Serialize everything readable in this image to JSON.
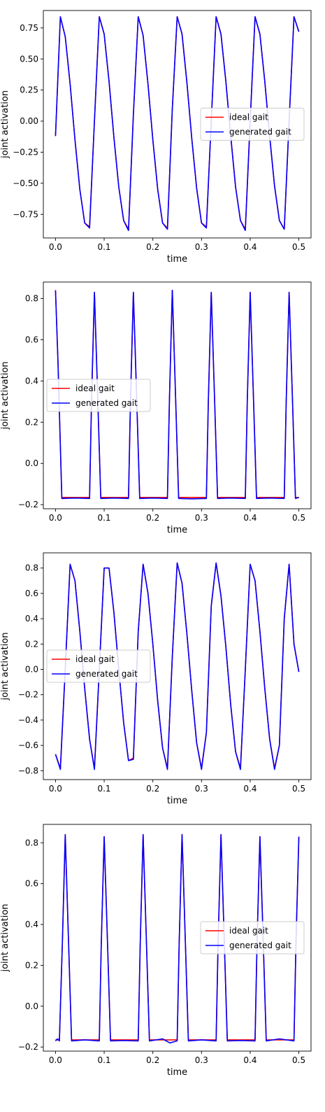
{
  "chart_data": [
    {
      "type": "line",
      "xlabel": "time",
      "ylabel": "joint activation",
      "xlim": [
        -0.025,
        0.525
      ],
      "ylim": [
        -0.94,
        0.89
      ],
      "xticks": [
        0.0,
        0.1,
        0.2,
        0.3,
        0.4,
        0.5
      ],
      "yticks": [
        -0.75,
        -0.5,
        -0.25,
        0.0,
        0.25,
        0.5,
        0.75
      ],
      "xtick_labels": [
        "0.0",
        "0.1",
        "0.2",
        "0.3",
        "0.4",
        "0.5"
      ],
      "ytick_labels": [
        "−0.75",
        "−0.50",
        "−0.25",
        "0.00",
        "0.25",
        "0.50",
        "0.75"
      ],
      "legend_position": "center-right",
      "grid": false,
      "series": [
        {
          "name": "ideal gait",
          "color": "#ff0000",
          "x": [
            0.0,
            0.01,
            0.02,
            0.03,
            0.04,
            0.05,
            0.06,
            0.07,
            0.08,
            0.09,
            0.1,
            0.11,
            0.12,
            0.13,
            0.14,
            0.15,
            0.16,
            0.17,
            0.18,
            0.19,
            0.2,
            0.21,
            0.22,
            0.23,
            0.24,
            0.25,
            0.26,
            0.27,
            0.28,
            0.29,
            0.3,
            0.31,
            0.32,
            0.33,
            0.34,
            0.35,
            0.36,
            0.37,
            0.38,
            0.39,
            0.4,
            0.41,
            0.42,
            0.43,
            0.44,
            0.45,
            0.46,
            0.47,
            0.48,
            0.49,
            0.5
          ],
          "y": [
            -0.12,
            0.84,
            0.68,
            0.3,
            -0.15,
            -0.55,
            -0.82,
            -0.85,
            0.0,
            0.84,
            0.7,
            0.32,
            -0.13,
            -0.53,
            -0.8,
            -0.87,
            0.05,
            0.84,
            0.69,
            0.3,
            -0.15,
            -0.55,
            -0.82,
            -0.86,
            0.1,
            0.84,
            0.7,
            0.31,
            -0.14,
            -0.54,
            -0.82,
            -0.85,
            0.0,
            0.84,
            0.7,
            0.32,
            -0.12,
            -0.53,
            -0.8,
            -0.87,
            0.0,
            0.84,
            0.7,
            0.32,
            -0.12,
            -0.52,
            -0.8,
            -0.87,
            0.0,
            0.84,
            0.72
          ]
        },
        {
          "name": "generated gait",
          "color": "#0000ff",
          "x": [
            0.0,
            0.01,
            0.02,
            0.03,
            0.04,
            0.05,
            0.06,
            0.07,
            0.08,
            0.09,
            0.1,
            0.11,
            0.12,
            0.13,
            0.14,
            0.15,
            0.16,
            0.17,
            0.18,
            0.19,
            0.2,
            0.21,
            0.22,
            0.23,
            0.24,
            0.25,
            0.26,
            0.27,
            0.28,
            0.29,
            0.3,
            0.31,
            0.32,
            0.33,
            0.34,
            0.35,
            0.36,
            0.37,
            0.38,
            0.39,
            0.4,
            0.41,
            0.42,
            0.43,
            0.44,
            0.45,
            0.46,
            0.47,
            0.48,
            0.49,
            0.5
          ],
          "y": [
            -0.12,
            0.84,
            0.68,
            0.3,
            -0.15,
            -0.55,
            -0.82,
            -0.86,
            0.0,
            0.84,
            0.7,
            0.32,
            -0.13,
            -0.53,
            -0.8,
            -0.88,
            0.05,
            0.84,
            0.69,
            0.3,
            -0.15,
            -0.55,
            -0.82,
            -0.87,
            0.1,
            0.84,
            0.7,
            0.31,
            -0.14,
            -0.54,
            -0.82,
            -0.86,
            0.0,
            0.84,
            0.7,
            0.32,
            -0.12,
            -0.53,
            -0.8,
            -0.88,
            0.0,
            0.84,
            0.7,
            0.32,
            -0.12,
            -0.52,
            -0.8,
            -0.87,
            0.0,
            0.84,
            0.72
          ]
        }
      ]
    },
    {
      "type": "line",
      "xlabel": "time",
      "ylabel": "joint activation",
      "xlim": [
        -0.025,
        0.525
      ],
      "ylim": [
        -0.22,
        0.88
      ],
      "xticks": [
        0.0,
        0.1,
        0.2,
        0.3,
        0.4,
        0.5
      ],
      "yticks": [
        -0.2,
        0.0,
        0.2,
        0.4,
        0.6,
        0.8
      ],
      "xtick_labels": [
        "0.0",
        "0.1",
        "0.2",
        "0.3",
        "0.4",
        "0.5"
      ],
      "ytick_labels": [
        "−0.2",
        "0.0",
        "0.2",
        "0.4",
        "0.6",
        "0.8"
      ],
      "legend_position": "center-left",
      "grid": false,
      "series": [
        {
          "name": "ideal gait",
          "color": "#ff0000",
          "x": [
            0.0,
            0.005,
            0.013,
            0.07,
            0.074,
            0.08,
            0.087,
            0.093,
            0.15,
            0.154,
            0.16,
            0.167,
            0.173,
            0.23,
            0.234,
            0.24,
            0.247,
            0.253,
            0.31,
            0.314,
            0.32,
            0.327,
            0.333,
            0.39,
            0.394,
            0.4,
            0.407,
            0.413,
            0.47,
            0.474,
            0.48,
            0.487,
            0.493,
            0.5
          ],
          "y": [
            0.84,
            0.5,
            -0.165,
            -0.165,
            0.3,
            0.83,
            0.3,
            -0.165,
            -0.165,
            0.3,
            0.83,
            0.3,
            -0.165,
            -0.165,
            0.3,
            0.84,
            0.3,
            -0.165,
            -0.165,
            0.3,
            0.83,
            0.3,
            -0.165,
            -0.165,
            0.3,
            0.83,
            0.3,
            -0.165,
            -0.165,
            0.3,
            0.83,
            0.3,
            -0.165,
            -0.165
          ]
        },
        {
          "name": "generated gait",
          "color": "#0000ff",
          "x": [
            0.0,
            0.005,
            0.013,
            0.04,
            0.07,
            0.074,
            0.08,
            0.087,
            0.093,
            0.12,
            0.15,
            0.154,
            0.16,
            0.167,
            0.173,
            0.2,
            0.23,
            0.234,
            0.24,
            0.247,
            0.253,
            0.28,
            0.31,
            0.314,
            0.32,
            0.327,
            0.333,
            0.36,
            0.39,
            0.394,
            0.4,
            0.407,
            0.413,
            0.44,
            0.47,
            0.474,
            0.48,
            0.487,
            0.493,
            0.5
          ],
          "y": [
            0.84,
            0.5,
            -0.17,
            -0.168,
            -0.17,
            0.3,
            0.83,
            0.3,
            -0.17,
            -0.168,
            -0.17,
            0.3,
            0.83,
            0.3,
            -0.17,
            -0.168,
            -0.17,
            0.3,
            0.84,
            0.3,
            -0.17,
            -0.172,
            -0.17,
            0.3,
            0.83,
            0.3,
            -0.17,
            -0.168,
            -0.17,
            0.3,
            0.83,
            0.3,
            -0.17,
            -0.168,
            -0.17,
            0.3,
            0.83,
            0.3,
            -0.17,
            -0.165
          ]
        }
      ]
    },
    {
      "type": "line",
      "xlabel": "time",
      "ylabel": "joint activation",
      "xlim": [
        -0.025,
        0.525
      ],
      "ylim": [
        -0.87,
        0.92
      ],
      "xticks": [
        0.0,
        0.1,
        0.2,
        0.3,
        0.4,
        0.5
      ],
      "yticks": [
        -0.8,
        -0.6,
        -0.4,
        -0.2,
        0.0,
        0.2,
        0.4,
        0.6,
        0.8
      ],
      "xtick_labels": [
        "0.0",
        "0.1",
        "0.2",
        "0.3",
        "0.4",
        "0.5"
      ],
      "ytick_labels": [
        "−0.8",
        "−0.6",
        "−0.4",
        "−0.2",
        "0.0",
        "0.2",
        "0.4",
        "0.6",
        "0.8"
      ],
      "legend_position": "center-left",
      "grid": false,
      "series": [
        {
          "name": "ideal gait",
          "color": "#ff0000",
          "x": [
            0.0,
            0.01,
            0.02,
            0.03,
            0.04,
            0.05,
            0.06,
            0.07,
            0.08,
            0.09,
            0.1,
            0.11,
            0.12,
            0.13,
            0.14,
            0.15,
            0.16,
            0.17,
            0.18,
            0.19,
            0.2,
            0.21,
            0.22,
            0.23,
            0.24,
            0.25,
            0.26,
            0.27,
            0.28,
            0.29,
            0.3,
            0.31,
            0.32,
            0.33,
            0.34,
            0.35,
            0.36,
            0.37,
            0.38,
            0.39,
            0.4,
            0.41,
            0.42,
            0.43,
            0.44,
            0.45,
            0.46,
            0.47,
            0.48,
            0.49,
            0.5
          ],
          "y": [
            -0.67,
            -0.78,
            0.0,
            0.83,
            0.7,
            0.3,
            -0.15,
            -0.55,
            -0.78,
            0.0,
            0.8,
            0.8,
            0.45,
            0.0,
            -0.42,
            -0.72,
            -0.7,
            0.3,
            0.83,
            0.6,
            0.2,
            -0.25,
            -0.62,
            -0.78,
            0.1,
            0.84,
            0.68,
            0.28,
            -0.17,
            -0.58,
            -0.78,
            -0.5,
            0.5,
            0.84,
            0.58,
            0.18,
            -0.28,
            -0.65,
            -0.78,
            0.0,
            0.83,
            0.7,
            0.3,
            -0.15,
            -0.55,
            -0.78,
            -0.6,
            0.4,
            0.83,
            0.2,
            -0.02
          ]
        },
        {
          "name": "generated gait",
          "color": "#0000ff",
          "x": [
            0.0,
            0.01,
            0.02,
            0.03,
            0.04,
            0.05,
            0.06,
            0.07,
            0.08,
            0.09,
            0.1,
            0.11,
            0.12,
            0.13,
            0.14,
            0.15,
            0.16,
            0.17,
            0.18,
            0.19,
            0.2,
            0.21,
            0.22,
            0.23,
            0.24,
            0.25,
            0.26,
            0.27,
            0.28,
            0.29,
            0.3,
            0.31,
            0.32,
            0.33,
            0.34,
            0.35,
            0.36,
            0.37,
            0.38,
            0.39,
            0.4,
            0.41,
            0.42,
            0.43,
            0.44,
            0.45,
            0.46,
            0.47,
            0.48,
            0.49,
            0.5
          ],
          "y": [
            -0.67,
            -0.79,
            0.0,
            0.83,
            0.7,
            0.3,
            -0.15,
            -0.55,
            -0.79,
            0.0,
            0.8,
            0.8,
            0.45,
            0.0,
            -0.42,
            -0.72,
            -0.71,
            0.3,
            0.83,
            0.6,
            0.2,
            -0.25,
            -0.62,
            -0.79,
            0.1,
            0.84,
            0.68,
            0.28,
            -0.17,
            -0.58,
            -0.79,
            -0.5,
            0.5,
            0.84,
            0.58,
            0.18,
            -0.28,
            -0.65,
            -0.79,
            0.0,
            0.83,
            0.7,
            0.3,
            -0.15,
            -0.55,
            -0.79,
            -0.6,
            0.4,
            0.83,
            0.2,
            -0.02
          ]
        }
      ]
    },
    {
      "type": "line",
      "xlabel": "time",
      "ylabel": "joint activation",
      "xlim": [
        -0.025,
        0.525
      ],
      "ylim": [
        -0.22,
        0.89
      ],
      "xticks": [
        0.0,
        0.1,
        0.2,
        0.3,
        0.4,
        0.5
      ],
      "yticks": [
        -0.2,
        0.0,
        0.2,
        0.4,
        0.6,
        0.8
      ],
      "xtick_labels": [
        "0.0",
        "0.1",
        "0.2",
        "0.3",
        "0.4",
        "0.5"
      ],
      "ytick_labels": [
        "−0.2",
        "0.0",
        "0.2",
        "0.4",
        "0.6",
        "0.8"
      ],
      "legend_position": "center-right",
      "grid": false,
      "series": [
        {
          "name": "ideal gait",
          "color": "#ff0000",
          "x": [
            0.0,
            0.008,
            0.014,
            0.02,
            0.027,
            0.033,
            0.09,
            0.094,
            0.1,
            0.107,
            0.113,
            0.17,
            0.174,
            0.18,
            0.187,
            0.193,
            0.25,
            0.254,
            0.26,
            0.267,
            0.273,
            0.33,
            0.334,
            0.34,
            0.347,
            0.353,
            0.41,
            0.414,
            0.42,
            0.427,
            0.433,
            0.49,
            0.494,
            0.5
          ],
          "y": [
            -0.165,
            -0.165,
            0.3,
            0.84,
            0.3,
            -0.165,
            -0.165,
            0.3,
            0.83,
            0.3,
            -0.165,
            -0.165,
            0.3,
            0.84,
            0.3,
            -0.165,
            -0.165,
            0.3,
            0.84,
            0.3,
            -0.165,
            -0.165,
            0.3,
            0.84,
            0.3,
            -0.165,
            -0.165,
            0.3,
            0.83,
            0.3,
            -0.165,
            -0.165,
            0.3,
            0.83
          ]
        },
        {
          "name": "generated gait",
          "color": "#0000ff",
          "x": [
            0.0,
            0.004,
            0.008,
            0.014,
            0.02,
            0.027,
            0.033,
            0.06,
            0.09,
            0.094,
            0.1,
            0.107,
            0.113,
            0.14,
            0.17,
            0.174,
            0.18,
            0.187,
            0.193,
            0.22,
            0.235,
            0.25,
            0.254,
            0.26,
            0.267,
            0.273,
            0.3,
            0.33,
            0.334,
            0.34,
            0.347,
            0.353,
            0.38,
            0.41,
            0.414,
            0.42,
            0.427,
            0.433,
            0.46,
            0.49,
            0.494,
            0.5
          ],
          "y": [
            -0.17,
            -0.16,
            -0.17,
            0.3,
            0.84,
            0.3,
            -0.17,
            -0.165,
            -0.17,
            0.3,
            0.83,
            0.3,
            -0.17,
            -0.168,
            -0.17,
            0.3,
            0.84,
            0.3,
            -0.17,
            -0.16,
            -0.18,
            -0.17,
            0.3,
            0.84,
            0.3,
            -0.17,
            -0.165,
            -0.17,
            0.3,
            0.84,
            0.3,
            -0.17,
            -0.168,
            -0.17,
            0.3,
            0.83,
            0.3,
            -0.17,
            -0.16,
            -0.17,
            0.3,
            0.83
          ]
        }
      ]
    }
  ]
}
